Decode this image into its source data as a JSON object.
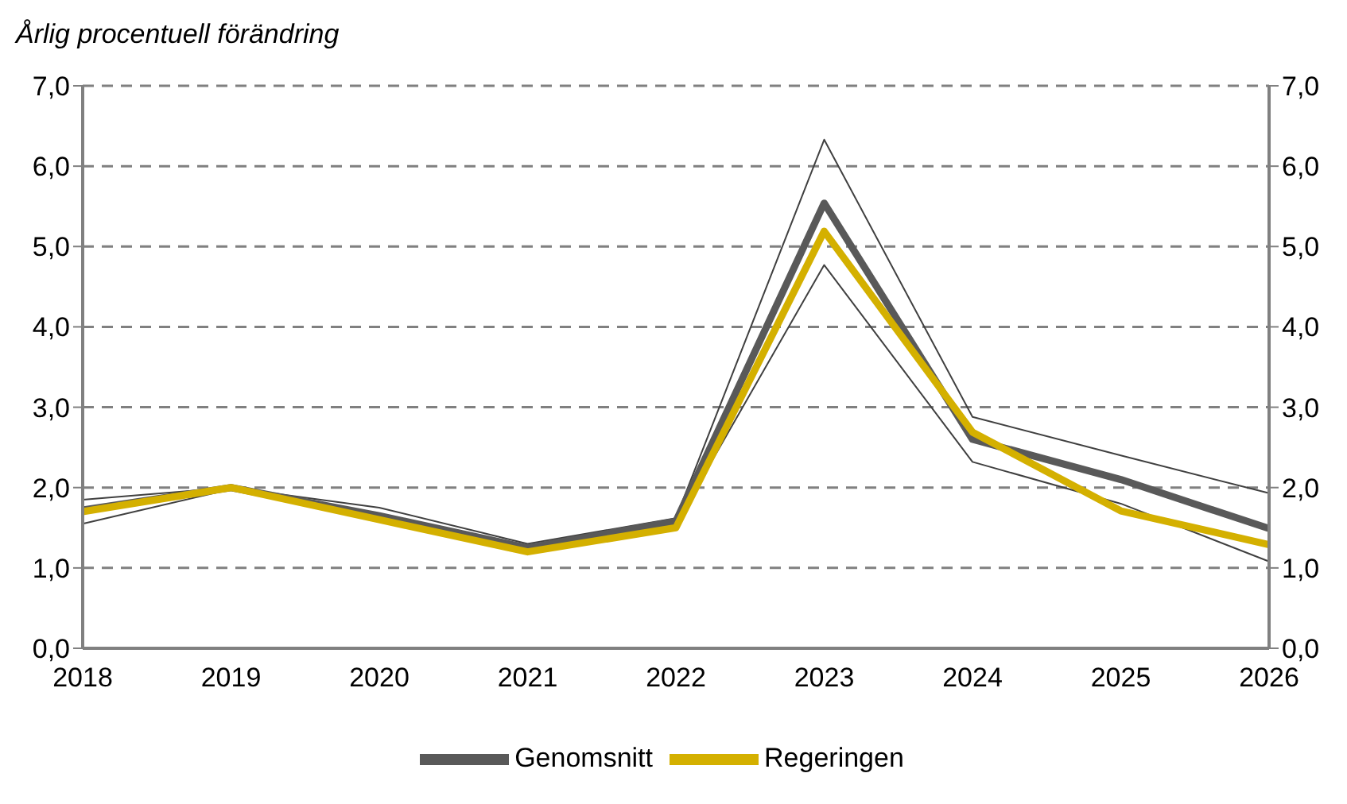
{
  "chart_data": {
    "type": "line",
    "title": "Årlig procentuell förändring",
    "categories": [
      "2018",
      "2019",
      "2020",
      "2021",
      "2022",
      "2023",
      "2024",
      "2025",
      "2026"
    ],
    "series": [
      {
        "color": "#404040",
        "values": [
          1.55,
          1.98,
          1.62,
          1.22,
          1.55,
          4.77,
          2.32,
          1.8,
          1.08
        ]
      },
      {
        "color": "#404040",
        "values": [
          1.85,
          2.0,
          1.75,
          1.3,
          1.62,
          6.33,
          2.88,
          2.4,
          1.93
        ]
      },
      {
        "name": "Genomsnitt",
        "color": "#595959",
        "values": [
          1.72,
          2.0,
          1.65,
          1.25,
          1.58,
          5.54,
          2.6,
          2.1,
          1.49
        ]
      },
      {
        "name": "Regeringen",
        "color": "#d4b000",
        "values": [
          1.7,
          2.0,
          1.6,
          1.2,
          1.5,
          5.19,
          2.69,
          1.71,
          1.29
        ]
      }
    ],
    "ylim": [
      0,
      7
    ],
    "yticks": [
      {
        "value": 0,
        "label": "0,0"
      },
      {
        "value": 1,
        "label": "1,0"
      },
      {
        "value": 2,
        "label": "2,0"
      },
      {
        "value": 3,
        "label": "3,0"
      },
      {
        "value": 4,
        "label": "4,0"
      },
      {
        "value": 5,
        "label": "5,0"
      },
      {
        "value": 6,
        "label": "6,0"
      },
      {
        "value": 7,
        "label": "7,0"
      }
    ],
    "y2lim": [
      0,
      7
    ],
    "y2ticks": [
      {
        "value": 0,
        "label": "0,0"
      },
      {
        "value": 1,
        "label": "1,0"
      },
      {
        "value": 2,
        "label": "2,0"
      },
      {
        "value": 3,
        "label": "3,0"
      },
      {
        "value": 4,
        "label": "4,0"
      },
      {
        "value": 5,
        "label": "5,0"
      },
      {
        "value": 6,
        "label": "6,0"
      },
      {
        "value": 7,
        "label": "7,0"
      }
    ],
    "grid": "y",
    "legend": "bottom",
    "marker": "none",
    "line_style": "solid"
  }
}
